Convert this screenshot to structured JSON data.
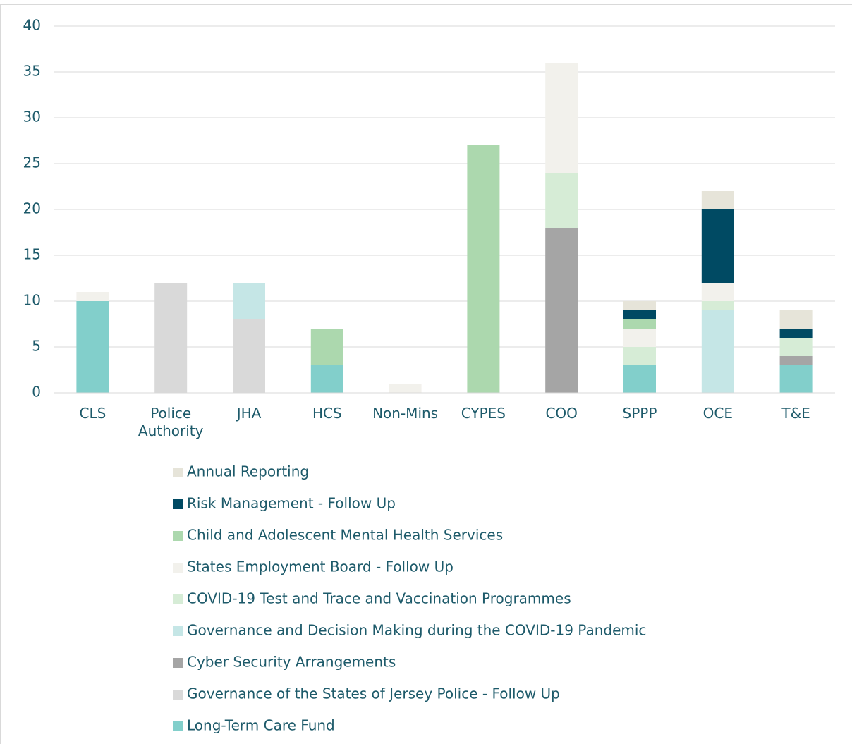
{
  "chart_data": {
    "type": "bar",
    "stacked": true,
    "categories": [
      "CLS",
      "Police Authority",
      "JHA",
      "HCS",
      "Non-Mins",
      "CYPES",
      "COO",
      "SPPP",
      "OCE",
      "T&E"
    ],
    "series": [
      {
        "name": "Annual Reporting",
        "color": "#e6e4d9",
        "values": [
          null,
          null,
          null,
          null,
          null,
          null,
          null,
          1,
          2,
          2
        ]
      },
      {
        "name": "Risk Management - Follow Up",
        "color": "#004a63",
        "values": [
          null,
          null,
          null,
          null,
          null,
          null,
          null,
          1,
          8,
          1
        ]
      },
      {
        "name": "Child and Adolescent Mental Health Services",
        "color": "#acd8ae",
        "values": [
          null,
          null,
          null,
          4,
          null,
          27,
          null,
          1,
          null,
          null
        ]
      },
      {
        "name": "States Employment Board - Follow Up",
        "color": "#f2f1ec",
        "values": [
          1,
          null,
          null,
          null,
          1,
          null,
          12,
          2,
          2,
          null
        ]
      },
      {
        "name": "COVID-19 Test and Trace and Vaccination Programmes",
        "color": "#d6ecd6",
        "values": [
          null,
          null,
          null,
          null,
          null,
          null,
          6,
          2,
          1,
          2
        ]
      },
      {
        "name": "Governance and Decision Making during the COVID-19 Pandemic",
        "color": "#c5e6e6",
        "values": [
          null,
          null,
          4,
          null,
          null,
          null,
          null,
          null,
          9,
          null
        ]
      },
      {
        "name": "Cyber Security Arrangements",
        "color": "#a5a5a5",
        "values": [
          null,
          null,
          null,
          null,
          null,
          null,
          18,
          null,
          null,
          1
        ]
      },
      {
        "name": "Governance of the States of Jersey Police - Follow Up",
        "color": "#d9d9d9",
        "values": [
          null,
          12,
          8,
          null,
          null,
          null,
          null,
          null,
          null,
          null
        ]
      },
      {
        "name": "Long-Term Care Fund",
        "color": "#82cfcb",
        "values": [
          10,
          null,
          null,
          3,
          null,
          null,
          null,
          3,
          null,
          3
        ]
      }
    ],
    "ylim": [
      0,
      40
    ],
    "yticks": [
      0,
      5,
      10,
      15,
      20,
      25,
      30,
      35,
      40
    ],
    "grid": true,
    "legend": "bottom"
  }
}
